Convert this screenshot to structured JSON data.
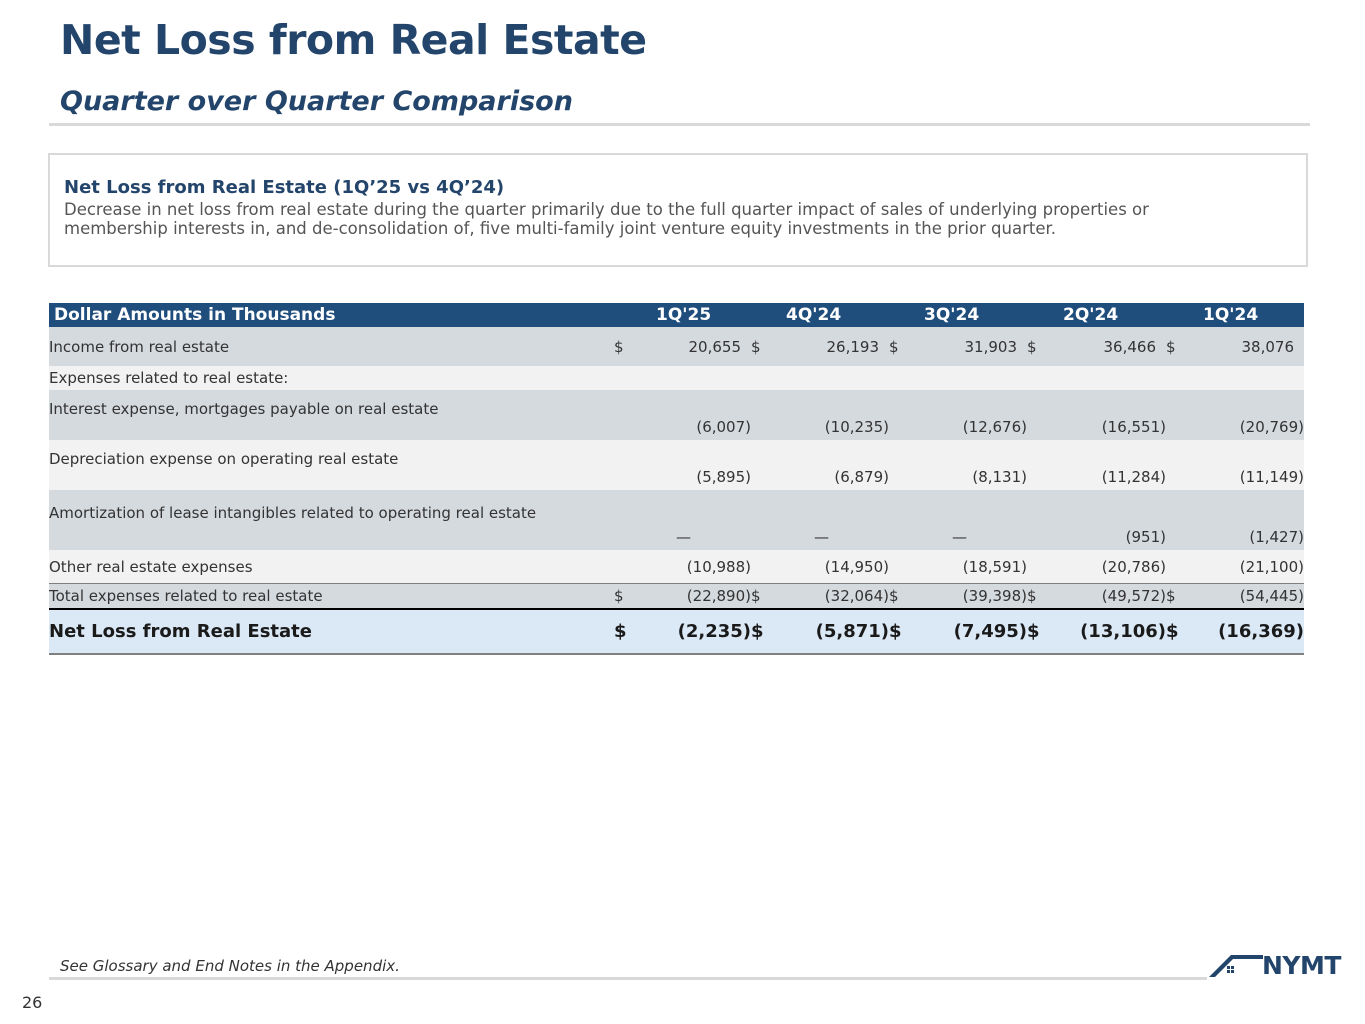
{
  "header": {
    "title": "Net Loss from Real Estate",
    "subtitle": "Quarter over Quarter Comparison"
  },
  "callout": {
    "title": "Net Loss from Real Estate (1Q’25 vs 4Q’24)",
    "text": "Decrease in net loss from real estate during the quarter primarily due to the full quarter impact of sales of underlying properties or membership interests in, and de-consolidation of, five multi-family joint venture equity investments in the prior quarter."
  },
  "table": {
    "label_header": "Dollar Amounts in Thousands",
    "columns": [
      "1Q'25",
      "4Q'24",
      "3Q'24",
      "2Q'24",
      "1Q'24"
    ],
    "rows": {
      "income": {
        "label": "Income from real estate",
        "cur": "$",
        "values": [
          "20,655",
          "26,193",
          "31,903",
          "36,466",
          "38,076"
        ]
      },
      "expenses_header": {
        "label": "Expenses related to real estate:"
      },
      "interest": {
        "label": "Interest expense, mortgages payable on real estate",
        "values": [
          "(6,007)",
          "(10,235)",
          "(12,676)",
          "(16,551)",
          "(20,769)"
        ]
      },
      "depreciation": {
        "label": "Depreciation expense on operating real estate",
        "values": [
          "(5,895)",
          "(6,879)",
          "(8,131)",
          "(11,284)",
          "(11,149)"
        ]
      },
      "amortization": {
        "label": "Amortization of lease intangibles related to operating real estate",
        "values": [
          "—",
          "—",
          "—",
          "(951)",
          "(1,427)"
        ]
      },
      "other": {
        "label": "Other real estate expenses",
        "values": [
          "(10,988)",
          "(14,950)",
          "(18,591)",
          "(20,786)",
          "(21,100)"
        ]
      },
      "total": {
        "label": "Total expenses related to real estate",
        "cur": "$",
        "values": [
          "(22,890)",
          "(32,064)",
          "(39,398)",
          "(49,572)",
          "(54,445)"
        ]
      },
      "net_loss": {
        "label": "Net Loss from Real Estate",
        "cur": "$",
        "values": [
          "(2,235)",
          "(5,871)",
          "(7,495)",
          "(13,106)",
          "(16,369)"
        ]
      }
    }
  },
  "footer": {
    "note": "See Glossary and End Notes in the Appendix.",
    "page_number": "26",
    "logo_text": "NYMT"
  },
  "colors": {
    "brand_navy": "#24456b",
    "header_fill": "#1f4e7d",
    "net_row_fill": "#dbe9f6"
  }
}
